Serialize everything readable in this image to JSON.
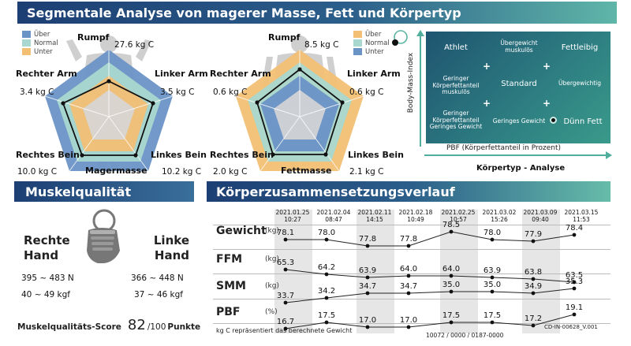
{
  "header": {
    "title": "Segmentale Analyse von magerer Masse, Fett und Körpertyp",
    "muscle_quality": "Muskelqualität",
    "trend": "Körperzusammensetzungsverlauf"
  },
  "legend": {
    "items": [
      "Über",
      "Normal",
      "Unter"
    ]
  },
  "lean": {
    "label": "Magermasse",
    "rumpf_label": "Rumpf",
    "rumpf_value": "27.6  kg C",
    "right_arm_label": "Rechter Arm",
    "right_arm_value": "3.4  kg C",
    "left_arm_label": "Linker Arm",
    "left_arm_value": "3.5  kg C",
    "right_leg_label": "Rechtes Bein",
    "right_leg_value": "10.0  kg C",
    "left_leg_label": "Linkes Bein",
    "left_leg_value": "10.2  kg C"
  },
  "fat": {
    "label": "Fettmasse",
    "rumpf_label": "Rumpf",
    "rumpf_value": "8.5 kg C",
    "right_arm_label": "Rechter Arm",
    "right_arm_value": "0.6  kg C",
    "left_arm_label": "Linker Arm",
    "left_arm_value": "0.6  kg C",
    "right_leg_label": "Rechtes Bein",
    "right_leg_value": "2.0  kg C",
    "left_leg_label": "Linkes Bein",
    "left_leg_value": "2.1  kg C"
  },
  "body_type": {
    "title": "Körpertyp - Analyse",
    "y_axis": "Body-Mass-Index",
    "x_axis": "PBF (Körperfettanteil in Prozent)",
    "cells": {
      "athlet": "Athlet",
      "uebergewicht_muskuloes": "Übergewicht muskulös",
      "fettleibig": "Fettleibig",
      "geringer_fett_muskuloes": "Geringer Körperfettanteil muskulös",
      "standard": "Standard",
      "uebergewichtig": "Übergewichtig",
      "geringer_fett_gewicht": "Geringer Körperfettanteil Geringes Gewicht",
      "geringes_gewicht": "Geringes Gewicht",
      "duenn_fett": "Dünn Fett"
    },
    "marker_cell": "Dünn Fett"
  },
  "muscle_quality": {
    "right_hand": "Rechte Hand",
    "left_hand": "Linke Hand",
    "right_n": "395 ~ 483 N",
    "right_kgf": "40 ~ 49 kgf",
    "left_n": "366 ~ 448 N",
    "left_kgf": "37 ~ 46 kgf",
    "score_label": "Muskelqualitäts-Score",
    "score": "82",
    "score_max": "/100",
    "score_unit": "Punkte"
  },
  "trend": {
    "dates": [
      {
        "date": "2021.01.25",
        "time": "10:27"
      },
      {
        "date": "2021.02.04",
        "time": "08:47"
      },
      {
        "date": "2021.02.11",
        "time": "14:15"
      },
      {
        "date": "2021.02.18",
        "time": "10:49"
      },
      {
        "date": "2021.02.25",
        "time": "10:57"
      },
      {
        "date": "2021.03.02",
        "time": "15:26"
      },
      {
        "date": "2021.03.09",
        "time": "09:40"
      },
      {
        "date": "2021.03.15",
        "time": "11:53"
      }
    ],
    "rows": [
      {
        "name": "Gewicht",
        "unit": "(kg)",
        "values": [
          "78.1",
          "78.0",
          "77.8",
          "77.8",
          "78.5",
          "78.0",
          "77.9",
          "78.4"
        ]
      },
      {
        "name": "FFM",
        "unit": "(kg)",
        "values": [
          "65.3",
          "64.2",
          "63.9",
          "64.0",
          "64.0",
          "63.9",
          "63.8",
          "63.5"
        ]
      },
      {
        "name": "SMM",
        "unit": "(kg)",
        "values": [
          "33.7",
          "34.2",
          "34.7",
          "34.7",
          "35.0",
          "35.0",
          "34.9",
          "35.3"
        ]
      },
      {
        "name": "PBF",
        "unit": "(%)",
        "values": [
          "16.7",
          "17.5",
          "17.0",
          "17.0",
          "17.5",
          "17.5",
          "17.2",
          "19.1"
        ]
      }
    ]
  },
  "footer": {
    "note": "kg C repräsentiert das berechnete Gewicht",
    "code": "10072 / 0000 / 0187-0000",
    "version": "CD-IN-00628_V.001"
  },
  "colors": {
    "ueber": "#6a93c6",
    "normal": "#a8d8cf",
    "unter": "#f2bf74",
    "fat_ueber": "#f2bf74",
    "fat_unter": "#6a93c6"
  }
}
